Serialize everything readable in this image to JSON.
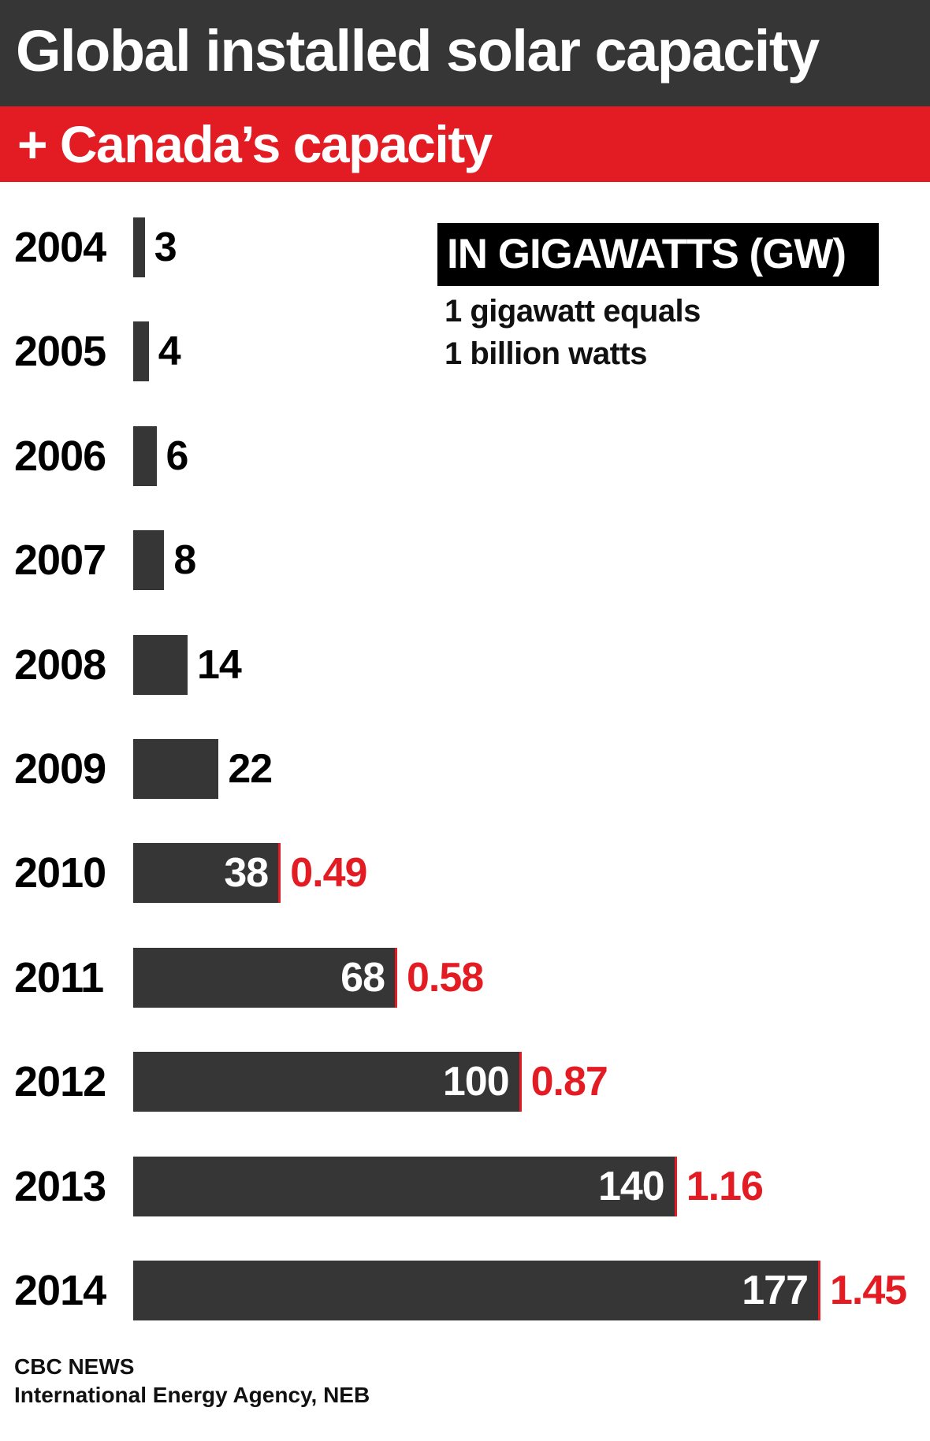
{
  "chart_data": {
    "type": "bar",
    "orientation": "horizontal",
    "title": "Global installed solar capacity",
    "subtitle": "+ Canada’s capacity",
    "unit_label": "IN GIGAWATTS (GW)",
    "notes": [
      "1 gigawatt equals",
      "1 billion watts"
    ],
    "categories": [
      "2004",
      "2005",
      "2006",
      "2007",
      "2008",
      "2009",
      "2010",
      "2011",
      "2012",
      "2013",
      "2014"
    ],
    "series": [
      {
        "values": [
          3,
          4,
          6,
          8,
          14,
          22,
          38,
          68,
          100,
          140,
          177
        ],
        "labels": [
          "3",
          "4",
          "6",
          "8",
          "14",
          "22",
          "38",
          "68",
          "100",
          "140",
          "177"
        ],
        "color": "#363636"
      },
      {
        "values": [
          null,
          null,
          null,
          null,
          null,
          null,
          0.49,
          0.58,
          0.87,
          1.16,
          1.45
        ],
        "labels": [
          "",
          "",
          "",
          "",
          "",
          "",
          "0.49",
          "0.58",
          "0.87",
          "1.16",
          "1.45"
        ],
        "color": "#e31b23"
      }
    ],
    "xlim": [
      0,
      177
    ],
    "grid": false
  },
  "footer": {
    "publisher": "CBC NEWS",
    "source": "International Energy Agency, NEB"
  },
  "colors": {
    "header": "#363636",
    "subheader": "#e31b23",
    "bar": "#363636",
    "canada": "#e31b23"
  }
}
